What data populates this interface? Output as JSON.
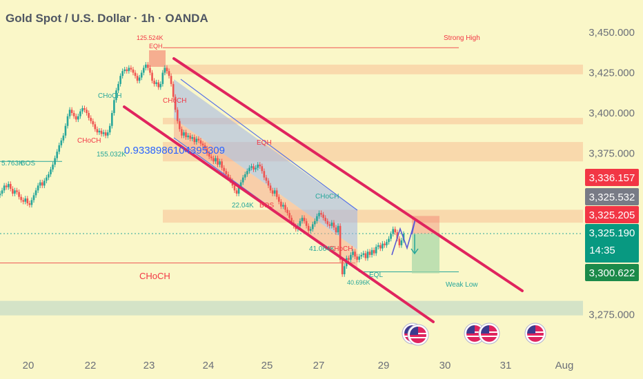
{
  "header": {
    "title": "Gold Spot / U.S. Dollar · 1h · OANDA"
  },
  "colors": {
    "background": "#faf7c8",
    "candle_up": "#26a69a",
    "candle_down": "#ef5350",
    "channel": "#e0245e",
    "zone": "#f8cfa3",
    "demand_zone": "#cfe0c7",
    "label_red": "#f23645",
    "label_gray": "#787b86",
    "label_green": "#089981",
    "label_dark_green": "#1b8a4a"
  },
  "icons": {
    "event_flag": "us-flag-icon"
  },
  "chart_data": {
    "type": "candlestick",
    "symbol": "Gold Spot / U.S. Dollar",
    "timeframe": "1h",
    "source": "OANDA",
    "x_ticks": [
      "20",
      "22",
      "23",
      "24",
      "25",
      "27",
      "29",
      "30",
      "31",
      "Aug"
    ],
    "y_ticks": [
      "3,450.000",
      "3,425.000",
      "3,400.000",
      "3,375.000",
      "3,275.000"
    ],
    "ylim": [
      3270,
      3458
    ],
    "price_labels": [
      {
        "text": "3,336.157",
        "price": 3336.157,
        "color": "#f23645"
      },
      {
        "text": "3,325.532",
        "price": 3325.532,
        "color": "#787b86"
      },
      {
        "text": "3,325.205",
        "price": 3325.205,
        "color": "#f23645"
      },
      {
        "text": "3,325.190",
        "sub": "14:35",
        "price": 3325.19,
        "color": "#089981"
      },
      {
        "text": "3,300.622",
        "price": 3300.622,
        "color": "#1b8a4a"
      }
    ],
    "candles_close": [
      3350,
      3352,
      3355,
      3354,
      3356,
      3353,
      3350,
      3352,
      3351,
      3348,
      3346,
      3345,
      3347,
      3344,
      3343,
      3346,
      3349,
      3352,
      3355,
      3357,
      3355,
      3358,
      3360,
      3362,
      3365,
      3368,
      3372,
      3376,
      3380,
      3383,
      3386,
      3392,
      3398,
      3402,
      3400,
      3398,
      3396,
      3398,
      3401,
      3403,
      3402,
      3400,
      3397,
      3395,
      3393,
      3390,
      3388,
      3389,
      3387,
      3388,
      3386,
      3388,
      3392,
      3400,
      3408,
      3414,
      3418,
      3423,
      3426,
      3427,
      3426,
      3428,
      3427,
      3425,
      3423,
      3420,
      3422,
      3425,
      3428,
      3430,
      3428,
      3425,
      3420,
      3418,
      3419,
      3416,
      3418,
      3425,
      3428,
      3426,
      3423,
      3418,
      3410,
      3402,
      3395,
      3390,
      3386,
      3388,
      3385,
      3386,
      3384,
      3385,
      3382,
      3384,
      3383,
      3381,
      3380,
      3378,
      3375,
      3373,
      3372,
      3370,
      3372,
      3368,
      3370,
      3366,
      3364,
      3362,
      3360,
      3358,
      3355,
      3352,
      3350,
      3354,
      3357,
      3360,
      3362,
      3364,
      3366,
      3367,
      3365,
      3366,
      3368,
      3367,
      3364,
      3360,
      3358,
      3355,
      3352,
      3350,
      3352,
      3348,
      3345,
      3342,
      3343,
      3340,
      3338,
      3335,
      3332,
      3330,
      3328,
      3330,
      3333,
      3335,
      3333,
      3330,
      3327,
      3328,
      3331,
      3333,
      3336,
      3338,
      3337,
      3335,
      3333,
      3331,
      3330,
      3332,
      3329,
      3326,
      3330,
      3309,
      3300,
      3305,
      3310,
      3309,
      3312,
      3314,
      3311,
      3309,
      3311,
      3312,
      3313,
      3310,
      3314,
      3312,
      3315,
      3313,
      3317,
      3318,
      3316,
      3319,
      3318,
      3320,
      3322,
      3325,
      3328,
      3326,
      3322,
      3318,
      3321,
      3325
    ],
    "annotations": [
      {
        "text": "Strong High",
        "color": "#f23645"
      },
      {
        "text": "125.524K",
        "color": "#f23645"
      },
      {
        "text": "EQH",
        "color": "#f23645"
      },
      {
        "text": "CHoCH",
        "color": "#26a69a"
      },
      {
        "text": "CHoCH",
        "color": "#f23645"
      },
      {
        "text": "CHoCH",
        "color": "#f23645"
      },
      {
        "text": "155.032K",
        "color": "#26a69a"
      },
      {
        "text": "0.9338986104395309",
        "color": "#2962ff"
      },
      {
        "text": "5.763K",
        "color": "#26a69a"
      },
      {
        "text": "BOS",
        "color": "#26a69a"
      },
      {
        "text": "EQH",
        "color": "#f23645"
      },
      {
        "text": "22.04K",
        "color": "#26a69a"
      },
      {
        "text": "BOS",
        "color": "#f23645"
      },
      {
        "text": "CHoCH",
        "color": "#26a69a"
      },
      {
        "text": "41.064K",
        "color": "#26a69a"
      },
      {
        "text": "CHoCH",
        "color": "#f23645"
      },
      {
        "text": "CHoCH",
        "color": "#f23645"
      },
      {
        "text": "EQL",
        "color": "#26a69a"
      },
      {
        "text": "40.696K",
        "color": "#26a69a"
      },
      {
        "text": "Weak Low",
        "color": "#26a69a"
      }
    ]
  }
}
